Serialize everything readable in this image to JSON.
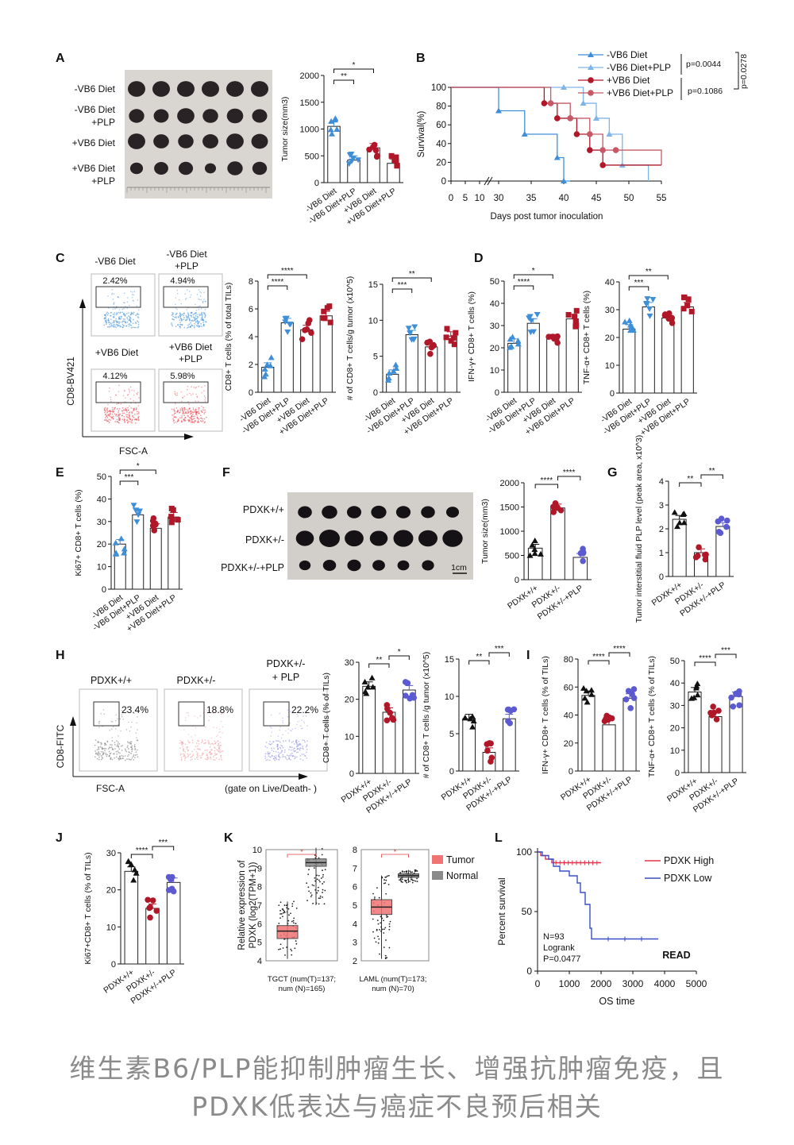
{
  "panel_labels": [
    "A",
    "B",
    "C",
    "D",
    "E",
    "F",
    "G",
    "H",
    "I",
    "J",
    "K",
    "L"
  ],
  "colors": {
    "blue": "#3f8fd8",
    "red": "#b0182a",
    "black": "#111111",
    "purple": "#5b5ad0",
    "pink": "#e87a82",
    "gray": "#666666",
    "tumor": "#f07474",
    "normal": "#8a8a8a"
  },
  "group_labels_vb6": [
    "-VB6 Diet",
    "-VB6 Diet+PLP",
    "+VB6 Diet",
    "+VB6 Diet+PLP"
  ],
  "group_labels_pdxk": [
    "PDXK+/+",
    "PDXK+/-",
    "PDXK+/-+PLP"
  ],
  "panelA": {
    "row_labels": [
      "-VB6 Diet",
      "-VB6 Diet +PLP",
      "+VB6 Diet",
      "+VB6 Diet +PLP"
    ]
  },
  "panelB_legend": [
    "-VB6 Diet",
    "-VB6 Diet+PLP",
    "+VB6 Diet",
    "+VB6 Diet+PLP"
  ],
  "panelB_pvalues": [
    "p=0.0044",
    "p=0.1086",
    "p=0.0278"
  ],
  "panelC_flow": {
    "titles": [
      "-VB6 Diet",
      "-VB6 Diet +PLP",
      "+VB6 Diet",
      "+VB6 Diet +PLP"
    ],
    "percents": [
      "2.42%",
      "4.94%",
      "4.12%",
      "5.98%"
    ],
    "ylabel": "CD8-BV421",
    "xlabel": "FSC-A"
  },
  "panelF_rows": [
    "PDXK+/+",
    "PDXK+/-",
    "PDXK+/-+PLP"
  ],
  "panelF_scale": "1cm",
  "panelH_flow": {
    "titles": [
      "PDXK+/+",
      "PDXK+/-",
      "PDXK+/- + PLP"
    ],
    "percents": [
      "23.4%",
      "18.8%",
      "22.2%"
    ],
    "ylabel": "CD8-FITC",
    "xlabel": "FSC-A",
    "gate_note": "(gate on Live/Death-   )"
  },
  "panelK": {
    "ylabel": "Relative expression of PDXK (log2(TPM+1))",
    "legend": [
      "Tumor",
      "Normal"
    ],
    "captions": [
      "TGCT (num(T)=137; num (N)=165)",
      "LAML (num(T)=173; num (N)=70)"
    ]
  },
  "panelL": {
    "legend": [
      "PDXK High",
      "PDXK Low"
    ],
    "stats": [
      "N=93",
      "Logrank",
      "P=0.0477"
    ],
    "tag": "READ"
  },
  "caption": [
    "维生素B6/PLP能抑制肿瘤生长、增强抗肿瘤免疫，且",
    "PDXK低表达与癌症不良预后相关"
  ],
  "chart_data": [
    {
      "id": "A-bar",
      "type": "bar",
      "title": "Tumor size",
      "ylabel": "Tumor size(mm3)",
      "categories": [
        "-VB6 Diet",
        "-VB6 Diet+PLP",
        "+VB6 Diet",
        "+VB6 Diet+PLP"
      ],
      "values": [
        1050,
        420,
        650,
        360
      ],
      "ylim": [
        0,
        2000
      ],
      "ticks": [
        0,
        500,
        1000,
        1500,
        2000
      ],
      "significance": [
        "**",
        "*"
      ]
    },
    {
      "id": "B-survival",
      "type": "line",
      "xlabel": "Days post tumor inoculation",
      "ylabel": "Survival(%)",
      "xticks": [
        0,
        5,
        10,
        30,
        35,
        40,
        45,
        50,
        55
      ],
      "yticks": [
        0,
        20,
        40,
        60,
        80,
        100
      ],
      "series": [
        {
          "name": "-VB6 Diet",
          "x": [
            0,
            30,
            34,
            39,
            40,
            41
          ],
          "y": [
            100,
            75,
            50,
            25,
            0,
            0
          ]
        },
        {
          "name": "-VB6 Diet+PLP",
          "x": [
            0,
            40,
            43,
            45,
            47,
            49,
            53
          ],
          "y": [
            100,
            100,
            83,
            67,
            50,
            17,
            0
          ]
        },
        {
          "name": "+VB6 Diet",
          "x": [
            0,
            37,
            39,
            42,
            44,
            46,
            55
          ],
          "y": [
            100,
            83,
            67,
            50,
            33,
            17,
            17
          ]
        },
        {
          "name": "+VB6 Diet+PLP",
          "x": [
            0,
            38,
            41,
            44,
            46,
            48,
            55
          ],
          "y": [
            100,
            83,
            67,
            50,
            33,
            33,
            17
          ]
        }
      ]
    },
    {
      "id": "C-bar1",
      "type": "bar",
      "ylabel": "CD8+ T cells (% of total TILs)",
      "categories": [
        "-VB6 Diet",
        "-VB6 Diet+PLP",
        "+VB6 Diet",
        "+VB6 Diet+PLP"
      ],
      "values": [
        1.8,
        5.0,
        4.5,
        5.5
      ],
      "ylim": [
        0,
        8
      ],
      "ticks": [
        0,
        2,
        4,
        6,
        8
      ],
      "significance": [
        "****",
        "****"
      ]
    },
    {
      "id": "C-bar2",
      "type": "bar",
      "ylabel": "# of CD8+ T cells/g tumor (x10^5)",
      "categories": [
        "-VB6 Diet",
        "-VB6 Diet+PLP",
        "+VB6 Diet",
        "+VB6 Diet+PLP"
      ],
      "values": [
        2.5,
        8.0,
        6.3,
        7.8
      ],
      "ylim": [
        0,
        15
      ],
      "ticks": [
        0,
        5,
        10,
        15
      ],
      "significance": [
        "***",
        "**"
      ]
    },
    {
      "id": "D-bar1",
      "type": "bar",
      "ylabel": "IFN-γ+ CD8+ T cells (%)",
      "categories": [
        "-VB6 Diet",
        "-VB6 Diet+PLP",
        "+VB6 Diet",
        "+VB6 Diet+PLP"
      ],
      "values": [
        22,
        31,
        24,
        33
      ],
      "ylim": [
        0,
        50
      ],
      "ticks": [
        0,
        10,
        20,
        30,
        40,
        50
      ],
      "significance": [
        "****",
        "*"
      ]
    },
    {
      "id": "D-bar2",
      "type": "bar",
      "ylabel": "TNF-α+ CD8+ T cells (%)",
      "categories": [
        "-VB6 Diet",
        "-VB6 Diet+PLP",
        "+VB6 Diet",
        "+VB6 Diet+PLP"
      ],
      "values": [
        23,
        31,
        27,
        31
      ],
      "ylim": [
        0,
        40
      ],
      "ticks": [
        0,
        10,
        20,
        30,
        40
      ],
      "significance": [
        "***",
        "**"
      ]
    },
    {
      "id": "E-bar",
      "type": "bar",
      "ylabel": "Ki67+ CD8+ T cells (%)",
      "categories": [
        "-VB6 Diet",
        "-VB6 Diet+PLP",
        "+VB6 Diet",
        "+VB6 Diet+PLP"
      ],
      "values": [
        20,
        33,
        27,
        32
      ],
      "ylim": [
        0,
        50
      ],
      "ticks": [
        0,
        10,
        20,
        30,
        40,
        50
      ],
      "significance": [
        "***",
        "*"
      ]
    },
    {
      "id": "F-bar",
      "type": "bar",
      "ylabel": "Tumor size(mm3)",
      "categories": [
        "PDXK+/+",
        "PDXK+/-",
        "PDXK+/-+PLP"
      ],
      "values": [
        650,
        1480,
        460
      ],
      "ylim": [
        0,
        2000
      ],
      "ticks": [
        0,
        500,
        1000,
        1500,
        2000
      ],
      "significance": [
        "****",
        "****"
      ]
    },
    {
      "id": "G-bar",
      "type": "bar",
      "ylabel": "Tumor interstitial fluid PLP level (peak area, x10^3)",
      "categories": [
        "PDXK+/+",
        "PDXK+/-",
        "PDXK+/-+PLP"
      ],
      "values": [
        2.4,
        1.0,
        2.1
      ],
      "ylim": [
        0,
        4
      ],
      "ticks": [
        0,
        1,
        2,
        3,
        4
      ],
      "significance": [
        "**",
        "**"
      ]
    },
    {
      "id": "H-bar1",
      "type": "bar",
      "ylabel": "CD8+ T cells (% of TILs)",
      "categories": [
        "PDXK+/+",
        "PDXK+/-",
        "PDXK+/-+PLP"
      ],
      "values": [
        23.5,
        16.5,
        22.5
      ],
      "ylim": [
        0,
        30
      ],
      "ticks": [
        0,
        10,
        20,
        30
      ],
      "significance": [
        "**",
        "*"
      ]
    },
    {
      "id": "H-bar2",
      "type": "bar",
      "ylabel": "# of CD8+ T cells /g tumor (x10^5)",
      "categories": [
        "PDXK+/+",
        "PDXK+/-",
        "PDXK+/-+PLP"
      ],
      "values": [
        7.0,
        2.5,
        7.0
      ],
      "ylim": [
        0,
        15
      ],
      "ticks": [
        0,
        5,
        10,
        15
      ],
      "significance": [
        "**",
        "***"
      ]
    },
    {
      "id": "I-bar1",
      "type": "bar",
      "ylabel": "IFN-γ+ CD8+ T cells (% of TILs)",
      "categories": [
        "PDXK+/+",
        "PDXK+/-",
        "PDXK+/-+PLP"
      ],
      "values": [
        54,
        33,
        52
      ],
      "ylim": [
        0,
        80
      ],
      "ticks": [
        0,
        20,
        40,
        60,
        80
      ],
      "significance": [
        "****",
        "****"
      ]
    },
    {
      "id": "I-bar2",
      "type": "bar",
      "ylabel": "TNF-α+ CD8+ T cells (% of TILs)",
      "categories": [
        "PDXK+/+",
        "PDXK+/-",
        "PDXK+/-+PLP"
      ],
      "values": [
        36,
        25,
        34
      ],
      "ylim": [
        0,
        50
      ],
      "ticks": [
        0,
        10,
        20,
        30,
        40,
        50
      ],
      "significance": [
        "****",
        "***"
      ]
    },
    {
      "id": "J-bar",
      "type": "bar",
      "ylabel": "Ki67+CD8+ T cells (% of TILs)",
      "categories": [
        "PDXK+/+",
        "PDXK+/-",
        "PDXK+/-+PLP"
      ],
      "values": [
        25,
        15,
        22
      ],
      "ylim": [
        0,
        30
      ],
      "ticks": [
        0,
        10,
        20,
        30
      ],
      "significance": [
        "****",
        "***"
      ]
    },
    {
      "id": "K-box1",
      "type": "box",
      "caption": "TGCT",
      "ylim": [
        4,
        10
      ],
      "ticks": [
        4,
        5,
        6,
        7,
        8,
        9,
        10
      ],
      "groups": [
        {
          "name": "Tumor",
          "q1": 5.2,
          "median": 5.6,
          "q3": 5.9,
          "min": 4.1,
          "max": 7.2
        },
        {
          "name": "Normal",
          "q1": 9.1,
          "median": 9.3,
          "q3": 9.5,
          "min": 7.0,
          "max": 10.1
        }
      ]
    },
    {
      "id": "K-box2",
      "type": "box",
      "caption": "LAML",
      "ylim": [
        2,
        8
      ],
      "ticks": [
        2,
        3,
        4,
        5,
        6,
        7,
        8
      ],
      "groups": [
        {
          "name": "Tumor",
          "q1": 4.5,
          "median": 4.9,
          "q3": 5.3,
          "min": 2.1,
          "max": 6.6
        },
        {
          "name": "Normal",
          "q1": 6.5,
          "median": 6.6,
          "q3": 6.7,
          "min": 6.2,
          "max": 6.9
        }
      ]
    },
    {
      "id": "L-survival",
      "type": "line",
      "xlabel": "OS time",
      "ylabel": "Percent survival",
      "xticks": [
        0,
        1000,
        2000,
        3000,
        4000,
        5000
      ],
      "yticks": [
        0,
        50,
        100
      ],
      "series": [
        {
          "name": "PDXK High",
          "x": [
            0,
            100,
            250,
            450,
            2000
          ],
          "y": [
            100,
            97,
            94,
            91,
            91
          ]
        },
        {
          "name": "PDXK Low",
          "x": [
            0,
            150,
            350,
            500,
            700,
            1000,
            1250,
            1350,
            1500,
            1650,
            1700,
            3800
          ],
          "y": [
            100,
            97,
            94,
            88,
            84,
            80,
            74,
            66,
            56,
            36,
            27,
            27
          ]
        }
      ]
    }
  ]
}
